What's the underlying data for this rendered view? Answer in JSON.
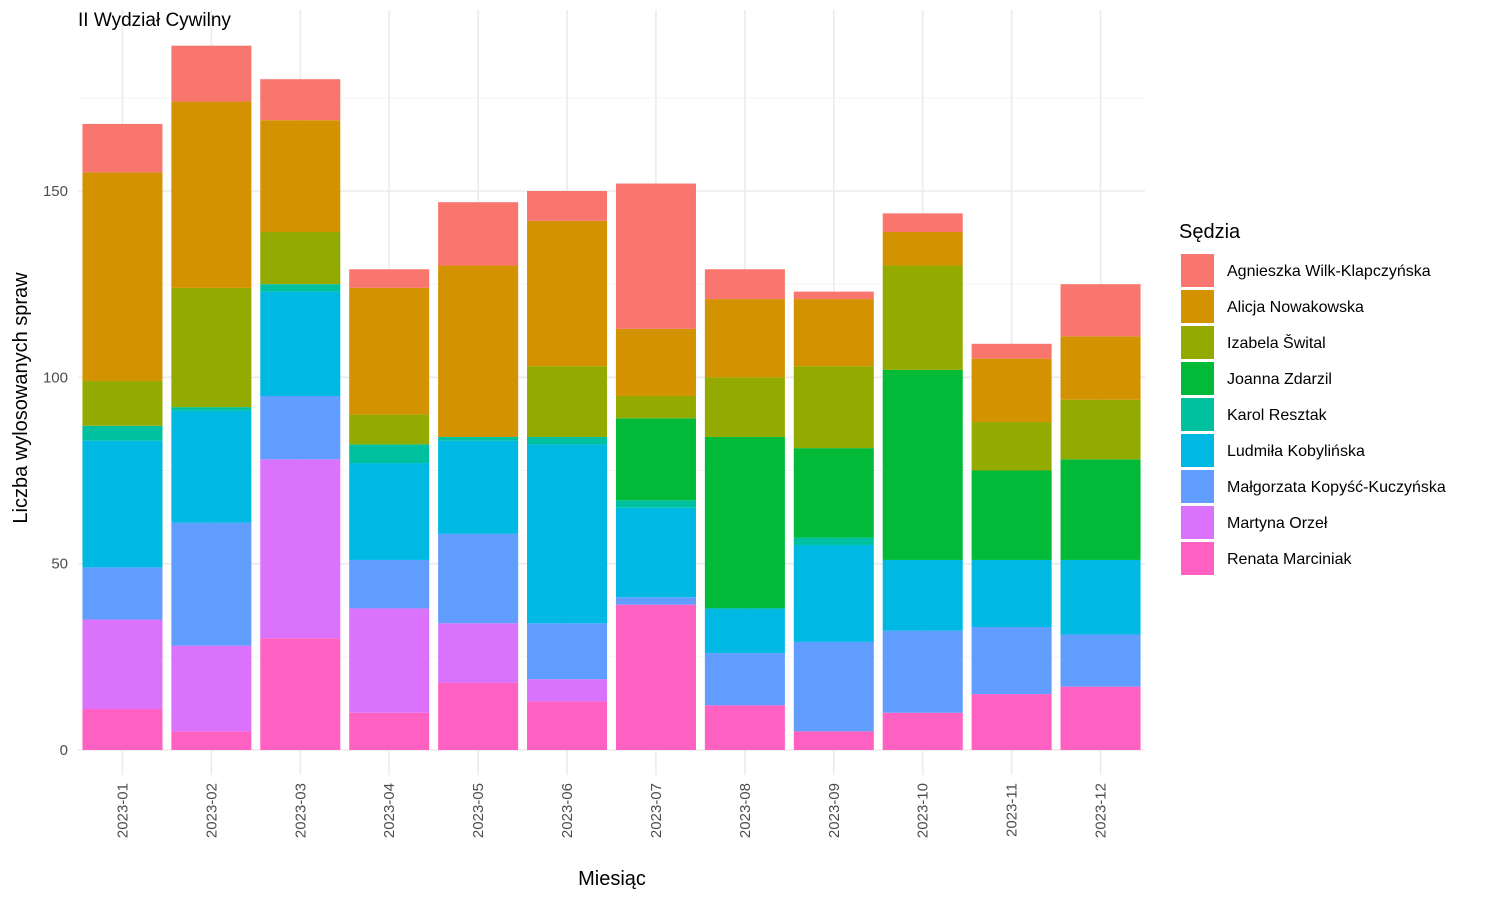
{
  "chart_data": {
    "type": "bar",
    "stacked": true,
    "title": "II Wydział Cywilny",
    "xlabel": "Miesiąc",
    "ylabel": "Liczba wylosowanych spraw",
    "ylim": [
      0,
      190
    ],
    "y_ticks": [
      0,
      50,
      100,
      150
    ],
    "grid": true,
    "legend": {
      "title": "Sędzia",
      "position": "right"
    },
    "categories": [
      "2023-01",
      "2023-02",
      "2023-03",
      "2023-04",
      "2023-05",
      "2023-06",
      "2023-07",
      "2023-08",
      "2023-09",
      "2023-10",
      "2023-11",
      "2023-12"
    ],
    "series": [
      {
        "name": "Renata Marciniak",
        "color": "#FF61C3",
        "values": [
          11,
          5,
          30,
          10,
          18,
          13,
          39,
          12,
          5,
          10,
          15,
          17
        ]
      },
      {
        "name": "Martyna Orzeł",
        "color": "#DB72FB",
        "values": [
          24,
          23,
          48,
          28,
          16,
          6,
          0,
          0,
          0,
          0,
          0,
          0
        ]
      },
      {
        "name": "Małgorzata Kopyść-Kuczyńska",
        "color": "#619CFF",
        "values": [
          14,
          33,
          17,
          13,
          24,
          15,
          2,
          14,
          24,
          22,
          18,
          14
        ]
      },
      {
        "name": "Ludmiła Kobylińska",
        "color": "#00B9E3",
        "values": [
          34,
          30,
          28,
          26,
          25,
          48,
          24,
          12,
          26,
          19,
          18,
          20
        ]
      },
      {
        "name": "Karol Resztak",
        "color": "#00C19F",
        "values": [
          4,
          1,
          2,
          5,
          1,
          2,
          2,
          0,
          2,
          0,
          0,
          0
        ]
      },
      {
        "name": "Joanna Zdarzil",
        "color": "#00BA38",
        "values": [
          0,
          0,
          0,
          0,
          0,
          0,
          22,
          46,
          24,
          51,
          24,
          27
        ]
      },
      {
        "name": "Izabela Šwital",
        "color": "#93AA00",
        "values": [
          12,
          32,
          14,
          8,
          0,
          19,
          6,
          16,
          22,
          28,
          13,
          16
        ]
      },
      {
        "name": "Alicja Nowakowska",
        "color": "#D39200",
        "values": [
          56,
          50,
          30,
          34,
          46,
          39,
          18,
          21,
          18,
          9,
          17,
          17
        ]
      },
      {
        "name": "Agnieszka Wilk-Klapczyńska",
        "color": "#F8766D",
        "values": [
          13,
          15,
          11,
          5,
          17,
          8,
          39,
          8,
          2,
          5,
          4,
          14
        ]
      }
    ],
    "legend_order": [
      "Agnieszka Wilk-Klapczyńska",
      "Alicja Nowakowska",
      "Izabela Šwital",
      "Joanna Zdarzil",
      "Karol Resztak",
      "Ludmiła Kobylińska",
      "Małgorzata Kopyść-Kuczyńska",
      "Martyna Orzeł",
      "Renata Marciniak"
    ]
  }
}
